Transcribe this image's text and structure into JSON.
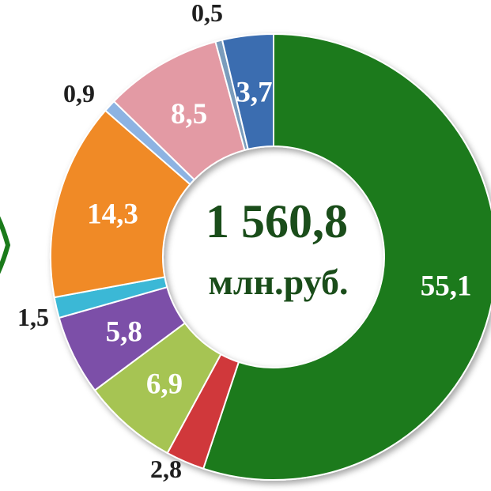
{
  "chart_data": {
    "type": "pie",
    "center_value": "1 560,8",
    "center_unit": "млн.руб.",
    "slices": [
      {
        "label": "55,1",
        "value": 55.1,
        "color": "#1a7a1a",
        "label_inside": true
      },
      {
        "label": "2,8",
        "value": 2.8,
        "color": "#d0393b",
        "label_inside": false
      },
      {
        "label": "6,9",
        "value": 6.9,
        "color": "#a6c453",
        "label_inside": true
      },
      {
        "label": "5,8",
        "value": 5.8,
        "color": "#7b4fa8",
        "label_inside": true
      },
      {
        "label": "1,5",
        "value": 1.5,
        "color": "#3ab8d6",
        "label_inside": false
      },
      {
        "label": "14,3",
        "value": 14.3,
        "color": "#f08a25",
        "label_inside": true
      },
      {
        "label": "0,9",
        "value": 0.9,
        "color": "#8db3e2",
        "label_inside": false
      },
      {
        "label": "8,5",
        "value": 8.5,
        "color": "#e39aa4",
        "label_inside": true
      },
      {
        "label": "0,5",
        "value": 0.5,
        "color": "#7a9cbc",
        "label_inside": false
      },
      {
        "label": "3,7",
        "value": 3.7,
        "color": "#3b6db0",
        "label_inside": true
      }
    ],
    "left_partial_color": "#1a7a1a"
  }
}
